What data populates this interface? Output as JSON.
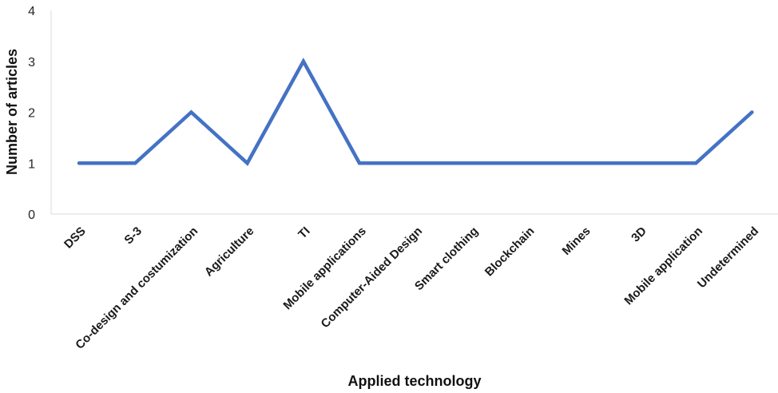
{
  "chart_data": {
    "type": "line",
    "xlabel": "Applied technology",
    "ylabel": "Number of articles",
    "categories": [
      "DSS",
      "S-3",
      "Co-design and costumization",
      "Agriculture",
      "TI",
      "Mobile applications",
      "Computer-Aided Design",
      "Smart clothing",
      "Blockchain",
      "Mines",
      "3D",
      "Mobile application",
      "Undetermined"
    ],
    "series": [
      {
        "values": [
          1,
          1,
          2,
          1,
          3,
          1,
          1,
          1,
          1,
          1,
          1,
          1,
          2
        ]
      }
    ],
    "ylim": [
      0,
      4
    ],
    "yticks": [
      "0",
      "1",
      "2",
      "3",
      "4"
    ],
    "grid": false,
    "colors": {
      "line": "#4472C4",
      "axis": "#d9d9d9"
    }
  }
}
